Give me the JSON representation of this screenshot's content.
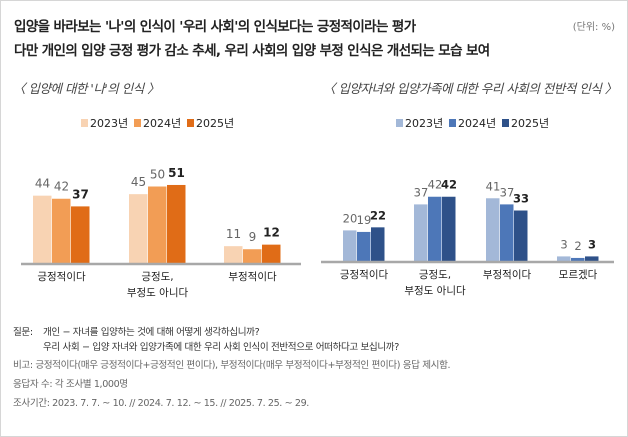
{
  "header": {
    "title_line1": "입양을 바라보는 '나'의 인식이 '우리 사회'의 인식보다는 긍정적이라는 평가",
    "title_line2": "다만 개인의 입양 긍정 평가 감소 추세, 우리 사회의 입양 부정 인식은 개선되는 모습 보여",
    "unit": "(단위: %)"
  },
  "chart_data": [
    {
      "type": "bar",
      "title": "〈 입양에 대한 '나'의 인식 〉",
      "categories": [
        "긍정적이다",
        "긍정도,\n부정도 아니다",
        "부정적이다"
      ],
      "category_lines": [
        [
          "긍정적이다"
        ],
        [
          "긍정도,",
          "부정도 아니다"
        ],
        [
          "부정적이다"
        ]
      ],
      "series": [
        {
          "name": "2023년",
          "values": [
            44,
            45,
            11
          ],
          "color": "#f8d3b3"
        },
        {
          "name": "2024년",
          "values": [
            42,
            50,
            9
          ],
          "color": "#f29d55"
        },
        {
          "name": "2025년",
          "values": [
            37,
            51,
            12
          ],
          "color": "#e06c17"
        }
      ],
      "legend": "top",
      "grid": false
    },
    {
      "type": "bar",
      "title": "〈 입양자녀와 입양가족에 대한 우리 사회의 전반적 인식 〉",
      "categories": [
        "긍정적이다",
        "긍정도,\n부정도 아니다",
        "부정적이다",
        "모르겠다"
      ],
      "category_lines": [
        [
          "긍정적이다"
        ],
        [
          "긍정도,",
          "부정도 아니다"
        ],
        [
          "부정적이다"
        ],
        [
          "모르겠다"
        ]
      ],
      "series": [
        {
          "name": "2023년",
          "values": [
            20,
            37,
            41,
            3
          ],
          "color": "#a3b8d8"
        },
        {
          "name": "2024년",
          "values": [
            19,
            42,
            37,
            2
          ],
          "color": "#4d77b8"
        },
        {
          "name": "2025년",
          "values": [
            22,
            42,
            33,
            3
          ],
          "color": "#2e5189"
        }
      ],
      "legend": "top",
      "grid": false
    }
  ],
  "notes": {
    "question_label": "질문:",
    "question_1": "개인 − 자녀를 입양하는 것에 대해 어떻게 생각하십니까?",
    "question_2": "우리 사회 − 입양 자녀와 입양가족에 대한 우리 사회 인식이 전반적으로 어떠하다고 보십니까?",
    "remark": "비고: 긍정적이다(매우 긍정적이다+긍정적인 편이다), 부정적이다(매우 부정적이다+부정적인 편이다) 응답 제시함.",
    "respondents": "응답자 수: 각 조사별 1,000명",
    "period": "조사기간: 2023. 7. 7. ~ 10. // 2024. 7. 12. ~ 15. // 2025. 7. 25. ~ 29."
  }
}
